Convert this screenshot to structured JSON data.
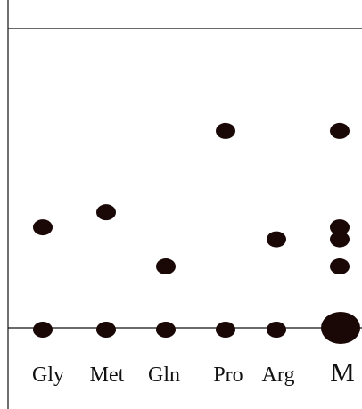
{
  "figure": {
    "type": "chromatogram",
    "colors": {
      "spot": "#1a0807",
      "line": "#111111",
      "background": "#ffffff"
    }
  },
  "lanes": [
    {
      "label": "Gly",
      "spots": [
        0.34
      ]
    },
    {
      "label": "Met",
      "spots": [
        0.39
      ]
    },
    {
      "label": "Gln",
      "spots": [
        0.21
      ]
    },
    {
      "label": "Pro",
      "spots": [
        0.66
      ]
    },
    {
      "label": "Arg",
      "spots": [
        0.3
      ]
    },
    {
      "label": "M",
      "spots": [
        0.66,
        0.34,
        0.3,
        0.21
      ],
      "marker": true
    }
  ]
}
